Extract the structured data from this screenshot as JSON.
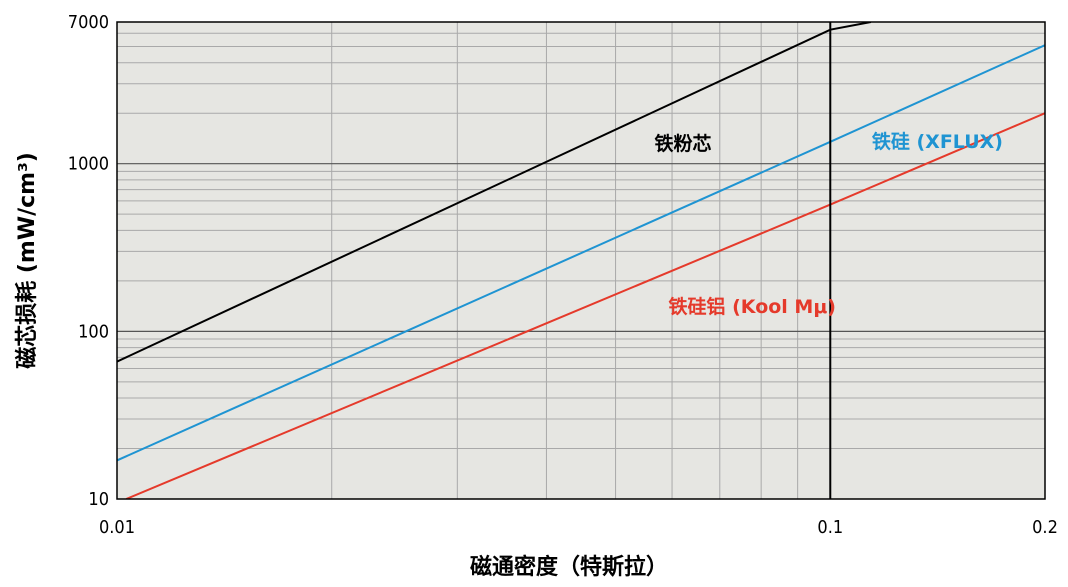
{
  "chart_data": {
    "type": "line",
    "xlabel": "磁通密度（特斯拉）",
    "ylabel": "磁芯损耗 (mW/cm³)",
    "x_scale": "log",
    "y_scale": "log",
    "xlim": [
      0.01,
      0.2
    ],
    "ylim": [
      10,
      7000
    ],
    "x_ticks": [
      0.01,
      0.1,
      0.2
    ],
    "x_tick_labels": [
      "0.01",
      "0.1",
      "0.2"
    ],
    "y_ticks": [
      10,
      100,
      1000,
      7000
    ],
    "y_tick_labels": [
      "10",
      "100",
      "1000",
      "7000"
    ],
    "grid": true,
    "plot_background": "#e6e6e2",
    "reference_line_x": 0.1,
    "series": [
      {
        "name": "铁粉芯",
        "color": "#000000",
        "label_color": "#000000",
        "x": [
          0.01,
          0.1,
          0.114
        ],
        "y": [
          66,
          6300,
          7000
        ]
      },
      {
        "name": "铁硅 (XFLUX)",
        "color": "#1f94d2",
        "label_color": "#1f94d2",
        "x": [
          0.01,
          0.1,
          0.2
        ],
        "y": [
          17,
          1350,
          5100
        ]
      },
      {
        "name": "铁硅铝 (Kool Mμ)",
        "color": "#e53a2b",
        "label_color": "#e53a2b",
        "x": [
          0.0103,
          0.1,
          0.2
        ],
        "y": [
          10,
          570,
          2000
        ]
      }
    ]
  }
}
